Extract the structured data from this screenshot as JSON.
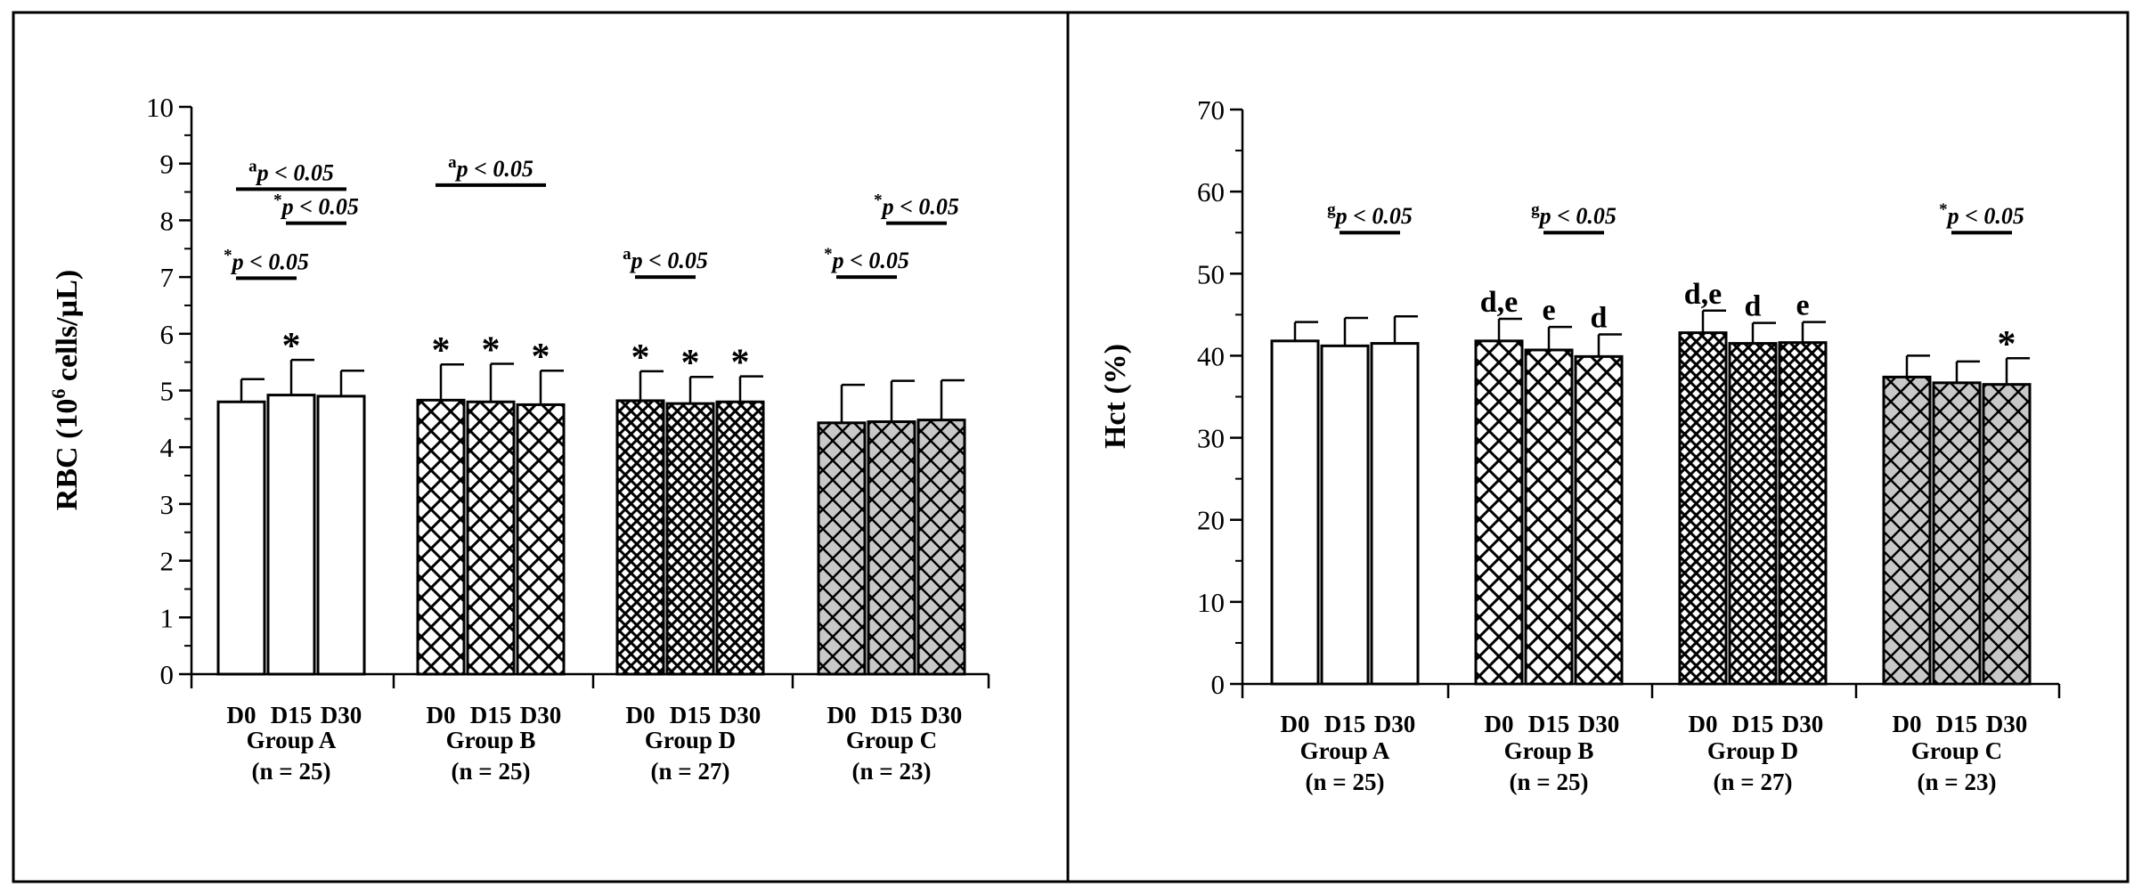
{
  "colors": {
    "ink": "#000000",
    "white_fill": "#ffffff",
    "gray_fill": "#c8c8c8",
    "background": "#ffffff"
  },
  "chart_data": [
    {
      "type": "bar",
      "panel": "left",
      "ylabel_main": "RBC (10",
      "ylabel_sup": "6",
      "ylabel_rest": " cells/µL)",
      "ylim": [
        0,
        10
      ],
      "yticks": [
        0,
        1,
        2,
        3,
        4,
        5,
        6,
        7,
        8,
        9,
        10
      ],
      "groups": [
        {
          "name": "Group A",
          "n": "(n = 25)",
          "pattern": "none",
          "days": [
            "D0",
            "D15",
            "D30"
          ],
          "values": [
            4.8,
            4.92,
            4.9
          ],
          "errors": [
            0.4,
            0.62,
            0.45
          ],
          "marks": [
            "",
            "*",
            ""
          ]
        },
        {
          "name": "Group B",
          "n": "(n = 25)",
          "pattern": "cross",
          "days": [
            "D0",
            "D15",
            "D30"
          ],
          "values": [
            4.83,
            4.8,
            4.75
          ],
          "errors": [
            0.63,
            0.67,
            0.6
          ],
          "marks": [
            "*",
            "*",
            "*"
          ]
        },
        {
          "name": "Group D",
          "n": "(n = 27)",
          "pattern": "dense",
          "days": [
            "D0",
            "D15",
            "D30"
          ],
          "values": [
            4.82,
            4.77,
            4.8
          ],
          "errors": [
            0.52,
            0.47,
            0.45
          ],
          "marks": [
            "*",
            "*",
            "*"
          ]
        },
        {
          "name": "Group C",
          "n": "(n = 23)",
          "pattern": "gray",
          "days": [
            "D0",
            "D15",
            "D30"
          ],
          "values": [
            4.43,
            4.45,
            4.48
          ],
          "errors": [
            0.67,
            0.72,
            0.7
          ],
          "marks": [
            "",
            "",
            ""
          ]
        }
      ],
      "annotations": [
        {
          "sup": "a",
          "text": "p < 0.05",
          "from": [
            0,
            0
          ],
          "to": [
            0,
            2
          ],
          "level": 8.55
        },
        {
          "sup": "*",
          "text": "p < 0.05",
          "from": [
            0,
            1
          ],
          "to": [
            0,
            2
          ],
          "level": 7.95
        },
        {
          "sup": "*",
          "text": "p < 0.05",
          "from": [
            0,
            0
          ],
          "to": [
            0,
            1
          ],
          "level": 6.98
        },
        {
          "sup": "a",
          "text": "p < 0.05",
          "from": [
            1,
            0
          ],
          "to": [
            1,
            2
          ],
          "level": 8.62
        },
        {
          "sup": "a",
          "text": "p < 0.05",
          "from": [
            2,
            0
          ],
          "to": [
            2,
            1
          ],
          "level": 7.0
        },
        {
          "sup": "*",
          "text": "p < 0.05",
          "from": [
            3,
            1
          ],
          "to": [
            3,
            2
          ],
          "level": 7.95
        },
        {
          "sup": "*",
          "text": "p < 0.05",
          "from": [
            3,
            0
          ],
          "to": [
            3,
            1
          ],
          "level": 7.0
        }
      ]
    },
    {
      "type": "bar",
      "panel": "right",
      "ylabel_main": "Hct (%)",
      "ylabel_sup": "",
      "ylabel_rest": "",
      "ylim": [
        0,
        70
      ],
      "yticks": [
        0,
        10,
        20,
        30,
        40,
        50,
        60,
        70
      ],
      "groups": [
        {
          "name": "Group A",
          "n": "(n = 25)",
          "pattern": "none",
          "days": [
            "D0",
            "D15",
            "D30"
          ],
          "values": [
            41.8,
            41.2,
            41.5
          ],
          "errors": [
            2.3,
            3.4,
            3.3
          ],
          "marks": [
            "",
            "",
            ""
          ]
        },
        {
          "name": "Group B",
          "n": "(n = 25)",
          "pattern": "cross",
          "days": [
            "D0",
            "D15",
            "D30"
          ],
          "values": [
            41.8,
            40.7,
            39.9
          ],
          "errors": [
            2.7,
            2.8,
            2.7
          ],
          "marks": [
            "d,e",
            "e",
            "d"
          ]
        },
        {
          "name": "Group D",
          "n": "(n = 27)",
          "pattern": "dense",
          "days": [
            "D0",
            "D15",
            "D30"
          ],
          "values": [
            42.8,
            41.5,
            41.6
          ],
          "errors": [
            2.7,
            2.5,
            2.5
          ],
          "marks": [
            "d,e",
            "d",
            "e"
          ]
        },
        {
          "name": "Group C",
          "n": "(n = 23)",
          "pattern": "gray",
          "days": [
            "D0",
            "D15",
            "D30"
          ],
          "values": [
            37.4,
            36.7,
            36.5
          ],
          "errors": [
            2.6,
            2.6,
            3.2
          ],
          "marks": [
            "",
            "",
            "*"
          ]
        }
      ],
      "annotations": [
        {
          "sup": "g",
          "text": "p < 0.05",
          "from": [
            0,
            1
          ],
          "to": [
            0,
            2
          ],
          "level": 55
        },
        {
          "sup": "g",
          "text": "p < 0.05",
          "from": [
            1,
            1
          ],
          "to": [
            1,
            2
          ],
          "level": 55
        },
        {
          "sup": "*",
          "text": "p < 0.05",
          "from": [
            3,
            1
          ],
          "to": [
            3,
            2
          ],
          "level": 55
        }
      ]
    }
  ]
}
